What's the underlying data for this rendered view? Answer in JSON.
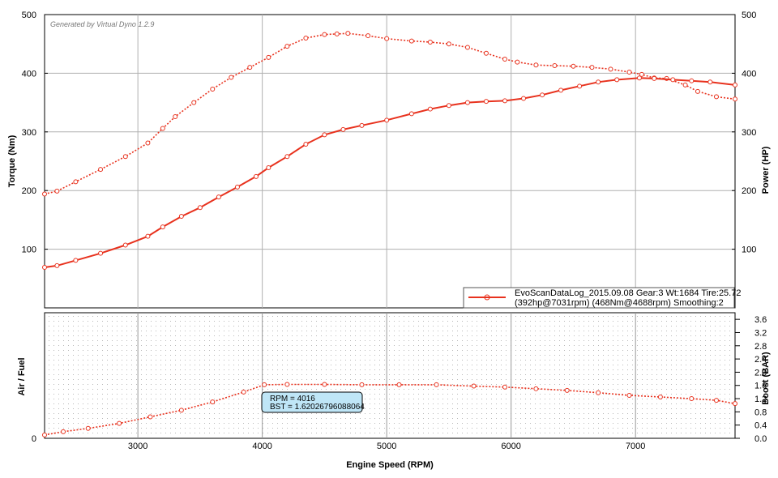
{
  "chart_data": [
    {
      "type": "line",
      "watermark": "Generated by Virtual Dyno 1.2.9",
      "xlabel": "",
      "ylabel_left": "Torque (Nm)",
      "ylabel_right": "Power (HP)",
      "xlim": [
        2250,
        7800
      ],
      "ylim_left": [
        0,
        500
      ],
      "ylim_right": [
        0,
        500
      ],
      "yticks_left": [
        "0",
        "100",
        "200",
        "300",
        "400",
        "500"
      ],
      "yticks_right": [
        "100",
        "200",
        "300",
        "400",
        "500"
      ],
      "grid": true,
      "legend_placement": "bottom-right",
      "legend": {
        "line1": "EvoScanDataLog_2015.09.08 Gear:3 Wt:1684 Tire:25.72",
        "line2": "(392hp@7031rpm) (468Nm@4688rpm) Smoothing:2"
      },
      "series_color": "#e8321e",
      "series": [
        {
          "name": "",
          "role": "torque",
          "style": "dotted",
          "x": [
            2250,
            2350,
            2500,
            2700,
            2900,
            3080,
            3200,
            3300,
            3450,
            3600,
            3750,
            3900,
            4050,
            4200,
            4350,
            4500,
            4600,
            4688,
            4850,
            5000,
            5200,
            5350,
            5500,
            5650,
            5800,
            5950,
            6050,
            6200,
            6350,
            6500,
            6650,
            6800,
            6950,
            7050,
            7150,
            7250,
            7400,
            7500,
            7650,
            7800
          ],
          "y": [
            194,
            199,
            215,
            236,
            258,
            281,
            306,
            326,
            350,
            373,
            393,
            410,
            427,
            446,
            460,
            466,
            467,
            468,
            464,
            459,
            455,
            453,
            450,
            444,
            434,
            424,
            419,
            414,
            413,
            412,
            410,
            407,
            402,
            398,
            392,
            391,
            380,
            369,
            360,
            356
          ]
        },
        {
          "name": "",
          "role": "power",
          "style": "solid",
          "x": [
            2250,
            2350,
            2500,
            2700,
            2900,
            3080,
            3200,
            3350,
            3500,
            3650,
            3800,
            3950,
            4050,
            4200,
            4350,
            4500,
            4650,
            4800,
            5000,
            5200,
            5350,
            5500,
            5650,
            5800,
            5950,
            6100,
            6250,
            6400,
            6550,
            6700,
            6850,
            7031,
            7150,
            7300,
            7450,
            7600,
            7800
          ],
          "y": [
            69,
            72,
            81,
            93,
            107,
            122,
            138,
            156,
            171,
            189,
            206,
            224,
            239,
            258,
            279,
            295,
            304,
            311,
            320,
            331,
            339,
            345,
            350,
            352,
            353,
            357,
            363,
            371,
            378,
            385,
            389,
            392,
            391,
            389,
            387,
            385,
            380
          ]
        }
      ]
    },
    {
      "type": "line",
      "xlabel": "Engine Speed (RPM)",
      "ylabel_left": "Air / Fuel",
      "ylabel_right": "Boost (BAR)",
      "xlim": [
        2250,
        7800
      ],
      "xticks": [
        "3000",
        "4000",
        "5000",
        "6000",
        "7000"
      ],
      "ylim_right": [
        0,
        3.8
      ],
      "yticks_left": [
        "0"
      ],
      "yticks_right": [
        "0.0",
        "0.4",
        "0.8",
        "1.2",
        "1.6",
        "2.0",
        "2.4",
        "2.8",
        "3.2",
        "3.6"
      ],
      "grid": true,
      "series_color": "#e8321e",
      "tooltip": {
        "line1": "RPM = 4016",
        "line2": "BST = 1.62026796088064"
      },
      "series": [
        {
          "name": "",
          "role": "boost",
          "style": "dotted",
          "x": [
            2250,
            2400,
            2600,
            2850,
            3100,
            3350,
            3600,
            3850,
            4016,
            4200,
            4500,
            4800,
            5100,
            5400,
            5700,
            5950,
            6200,
            6450,
            6700,
            6950,
            7200,
            7450,
            7650,
            7800
          ],
          "y": [
            0.1,
            0.2,
            0.3,
            0.45,
            0.65,
            0.85,
            1.1,
            1.4,
            1.62,
            1.63,
            1.63,
            1.62,
            1.62,
            1.62,
            1.58,
            1.55,
            1.5,
            1.45,
            1.38,
            1.3,
            1.25,
            1.2,
            1.15,
            1.05
          ]
        }
      ]
    }
  ]
}
